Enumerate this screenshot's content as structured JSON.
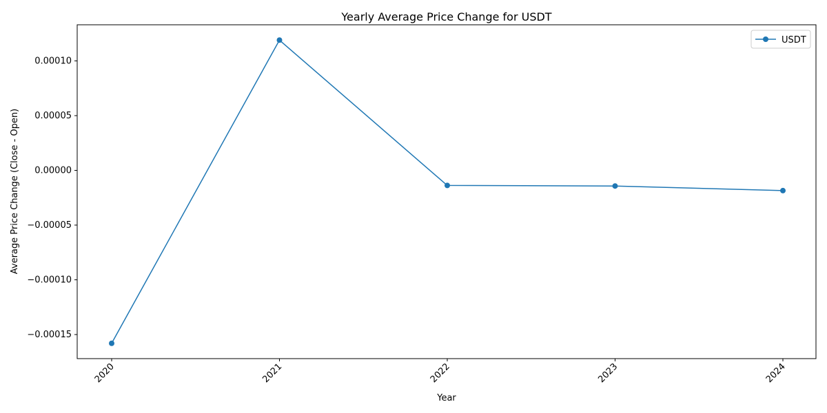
{
  "chart_data": {
    "type": "line",
    "title": "Yearly Average Price Change for USDT",
    "xlabel": "Year",
    "ylabel": "Average Price Change (Close - Open)",
    "categories": [
      "2020",
      "2021",
      "2022",
      "2023",
      "2024"
    ],
    "series": [
      {
        "name": "USDT",
        "values": [
          -0.000158,
          0.000119,
          -1.38e-05,
          -1.43e-05,
          -1.85e-05
        ],
        "color": "#1f77b4",
        "marker": "circle"
      }
    ],
    "ylim": [
      -0.000172,
      0.000133
    ],
    "yticks": [
      -0.00015,
      -0.0001,
      -5e-05,
      0.0,
      5e-05,
      0.0001
    ],
    "ytick_labels": [
      "−0.00015",
      "−0.00010",
      "−0.00005",
      "0.00000",
      "0.00005",
      "0.00010"
    ],
    "xtick_rotation": 45,
    "grid": false,
    "legend_position": "upper right"
  }
}
